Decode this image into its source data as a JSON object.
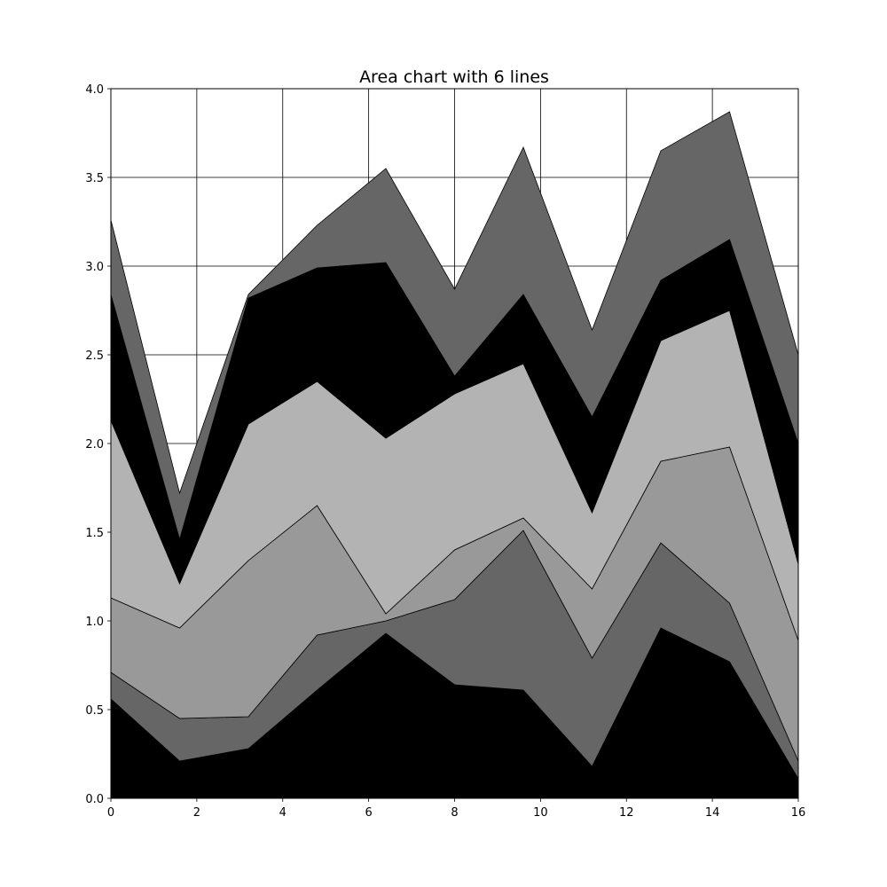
{
  "chart_data": {
    "type": "area",
    "stacked": true,
    "title": "Area chart with 6 lines",
    "xlabel": "",
    "ylabel": "",
    "xlim": [
      0,
      16
    ],
    "ylim": [
      0,
      4.0
    ],
    "grid": true,
    "x_ticks": [
      "0",
      "2",
      "4",
      "6",
      "8",
      "10",
      "12",
      "14",
      "16"
    ],
    "y_ticks": [
      "0.0",
      "0.5",
      "1.0",
      "1.5",
      "2.0",
      "2.5",
      "3.0",
      "3.5",
      "4.0"
    ],
    "x": [
      0,
      1.6,
      3.2,
      4.8,
      6.4,
      8.0,
      9.6,
      11.2,
      12.8,
      14.4,
      16.0
    ],
    "series": [
      {
        "color": "#000000",
        "values": [
          0.56,
          0.21,
          0.28,
          0.61,
          0.93,
          0.64,
          0.61,
          0.18,
          0.96,
          0.77,
          0.11
        ]
      },
      {
        "color": "#666666",
        "values": [
          0.15,
          0.24,
          0.18,
          0.31,
          0.07,
          0.48,
          0.9,
          0.61,
          0.48,
          0.33,
          0.1
        ]
      },
      {
        "color": "#999999",
        "values": [
          0.42,
          0.51,
          0.88,
          0.73,
          0.04,
          0.28,
          0.07,
          0.39,
          0.46,
          0.88,
          0.68
        ]
      },
      {
        "color": "#b3b3b3",
        "values": [
          1.0,
          0.25,
          0.77,
          0.7,
          0.99,
          0.88,
          0.87,
          0.43,
          0.68,
          0.77,
          0.43
        ]
      },
      {
        "color": "#000000",
        "values": [
          0.71,
          0.25,
          0.71,
          0.64,
          0.99,
          0.1,
          0.39,
          0.54,
          0.34,
          0.4,
          0.68
        ]
      },
      {
        "color": "#666666",
        "values": [
          0.42,
          0.26,
          0.02,
          0.24,
          0.53,
          0.49,
          0.83,
          0.49,
          0.73,
          0.72,
          0.5
        ]
      }
    ]
  }
}
